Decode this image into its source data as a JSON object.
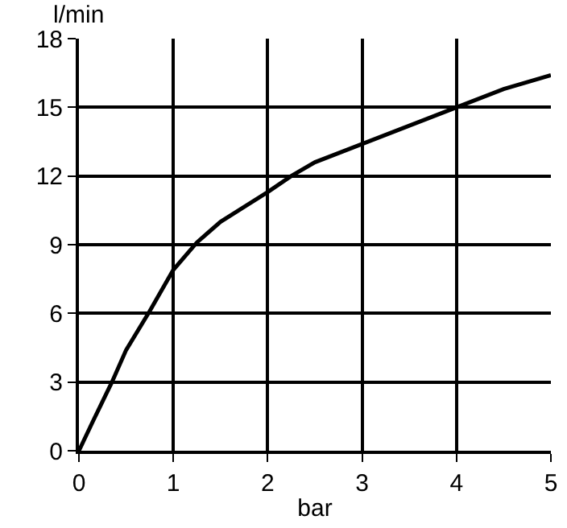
{
  "chart_data": {
    "type": "line",
    "xlabel": "bar",
    "ylabel": "l/min",
    "x": [
      0,
      0.15,
      0.35,
      0.5,
      0.75,
      1,
      1.25,
      1.5,
      2,
      2.25,
      2.5,
      3,
      3.5,
      4,
      4.5,
      5
    ],
    "series": [
      {
        "color": "#000000",
        "values": [
          0,
          1.3,
          3,
          4.4,
          6.1,
          7.9,
          9.1,
          10,
          11.3,
          12,
          12.6,
          13.4,
          14.2,
          15,
          15.8,
          16.4
        ]
      }
    ],
    "xlim": [
      0,
      5
    ],
    "xticks": [
      0,
      1,
      2,
      3,
      4,
      5
    ],
    "ylim": [
      0,
      18
    ],
    "yticks": [
      0,
      3,
      6,
      9,
      12,
      15,
      18
    ],
    "grid": true,
    "marker": "none",
    "line_style": "solid"
  }
}
